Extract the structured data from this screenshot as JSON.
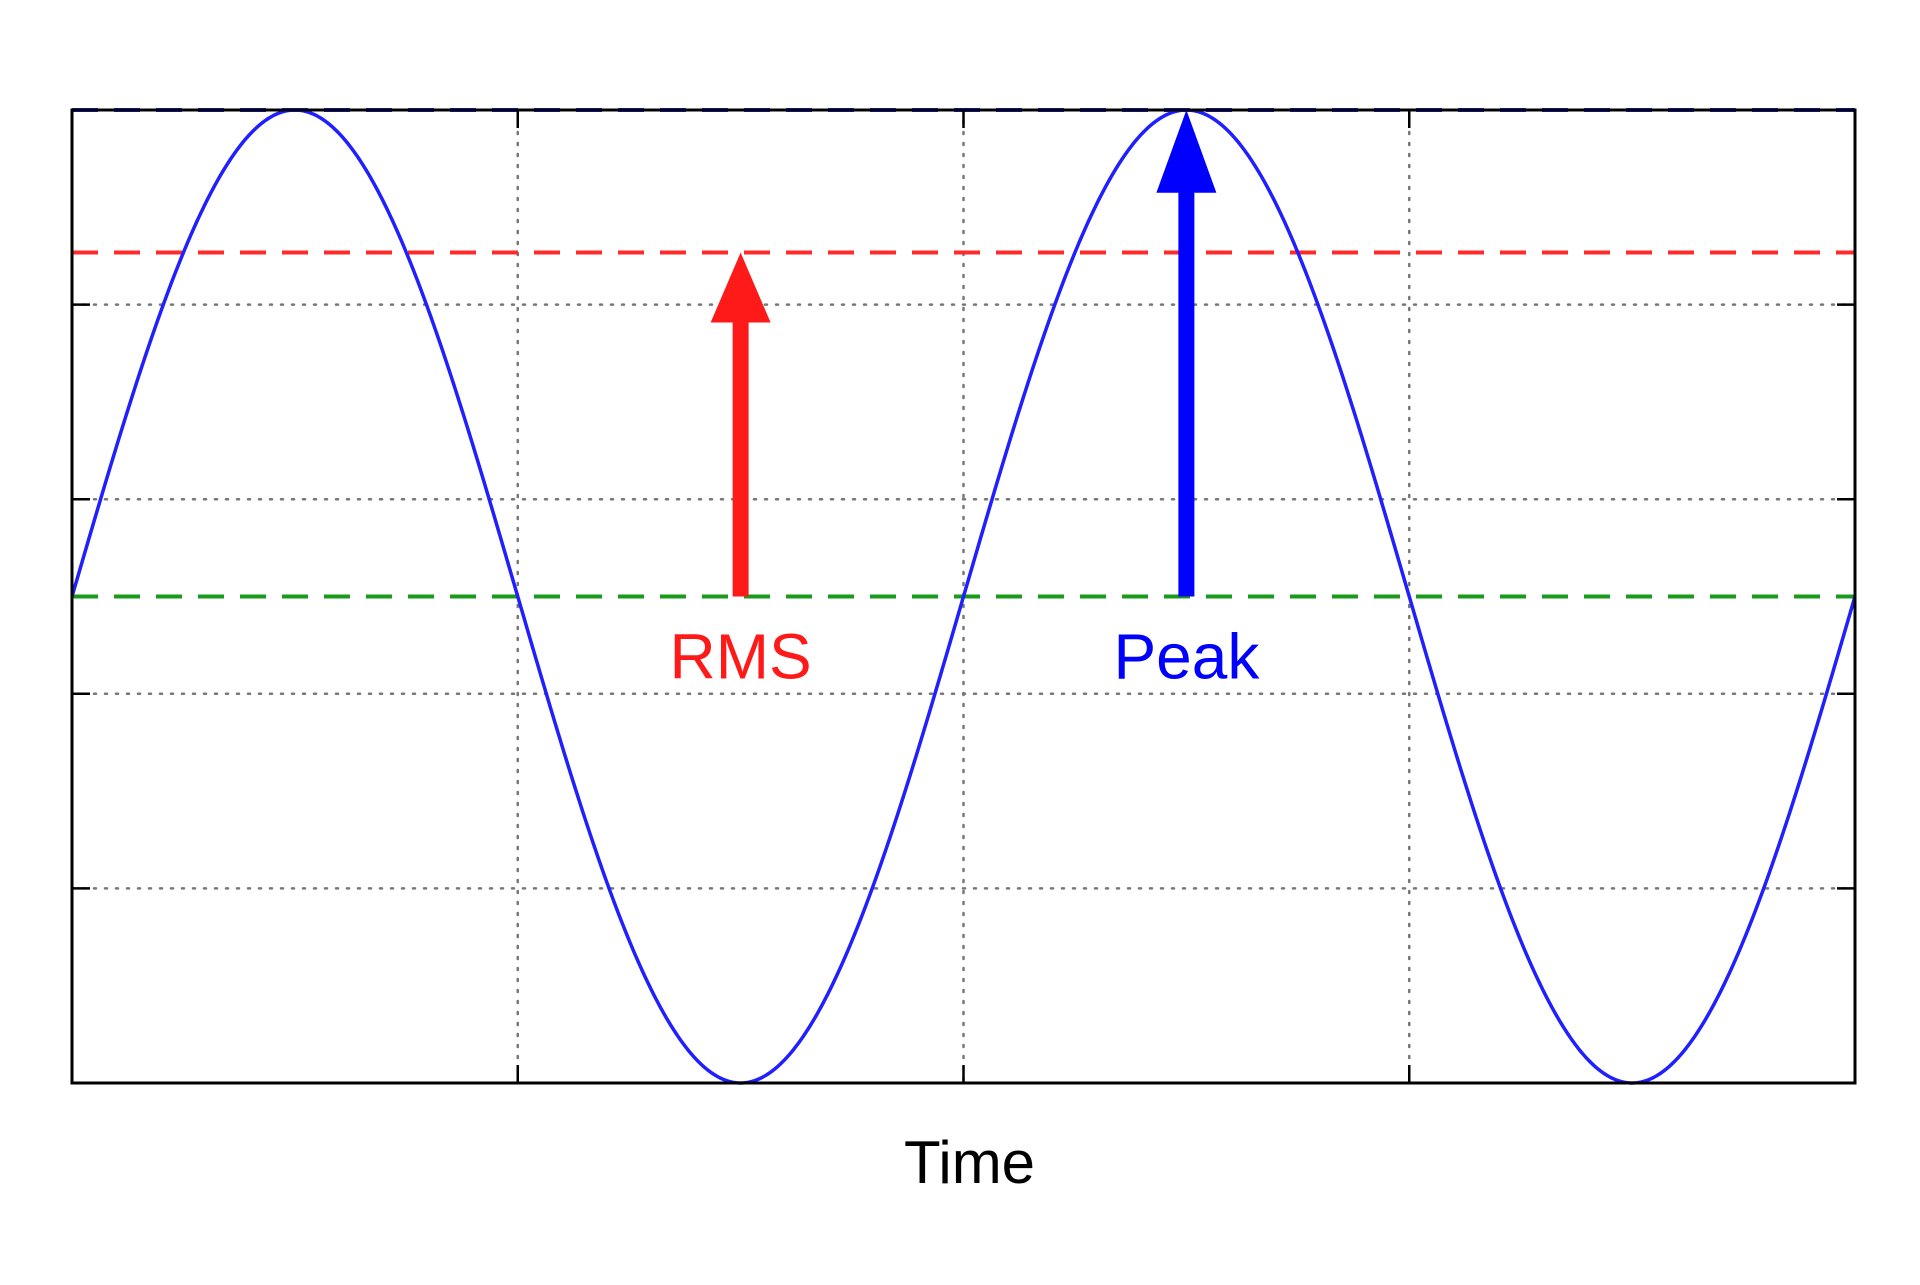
{
  "chart_data": {
    "type": "line",
    "title": "",
    "xlabel": "Time",
    "ylabel": "",
    "xlim": [
      0,
      2
    ],
    "ylim": [
      -1,
      1
    ],
    "xticks": [
      0,
      0.5,
      1,
      1.5,
      2
    ],
    "yticks": [
      -1,
      -0.6,
      -0.2,
      0.2,
      0.6,
      1
    ],
    "grid": true,
    "series": [
      {
        "type": "sine",
        "amplitude": 1,
        "period": 1,
        "phase": 0,
        "color": "#1f1fff",
        "x": [
          0,
          0.25,
          0.5,
          0.75,
          1,
          1.25,
          1.5,
          1.75,
          2
        ],
        "y": [
          0,
          1,
          0,
          -1,
          0,
          1,
          0,
          -1,
          0
        ]
      }
    ],
    "reference_lines": [
      {
        "y": 1,
        "color": "#1f1fff",
        "style": "dashed"
      },
      {
        "y": 0.707,
        "color": "#ff2a2a",
        "style": "dashed"
      },
      {
        "y": 0,
        "color": "#1a9a1a",
        "style": "dashed"
      }
    ],
    "annotations": [
      {
        "label": "RMS",
        "x": 0.75,
        "y_from": 0,
        "y_to": 0.707,
        "color": "#ff1a1a"
      },
      {
        "label": "Peak",
        "x": 1.25,
        "y_from": 0,
        "y_to": 1,
        "color": "#0000ff"
      }
    ]
  }
}
